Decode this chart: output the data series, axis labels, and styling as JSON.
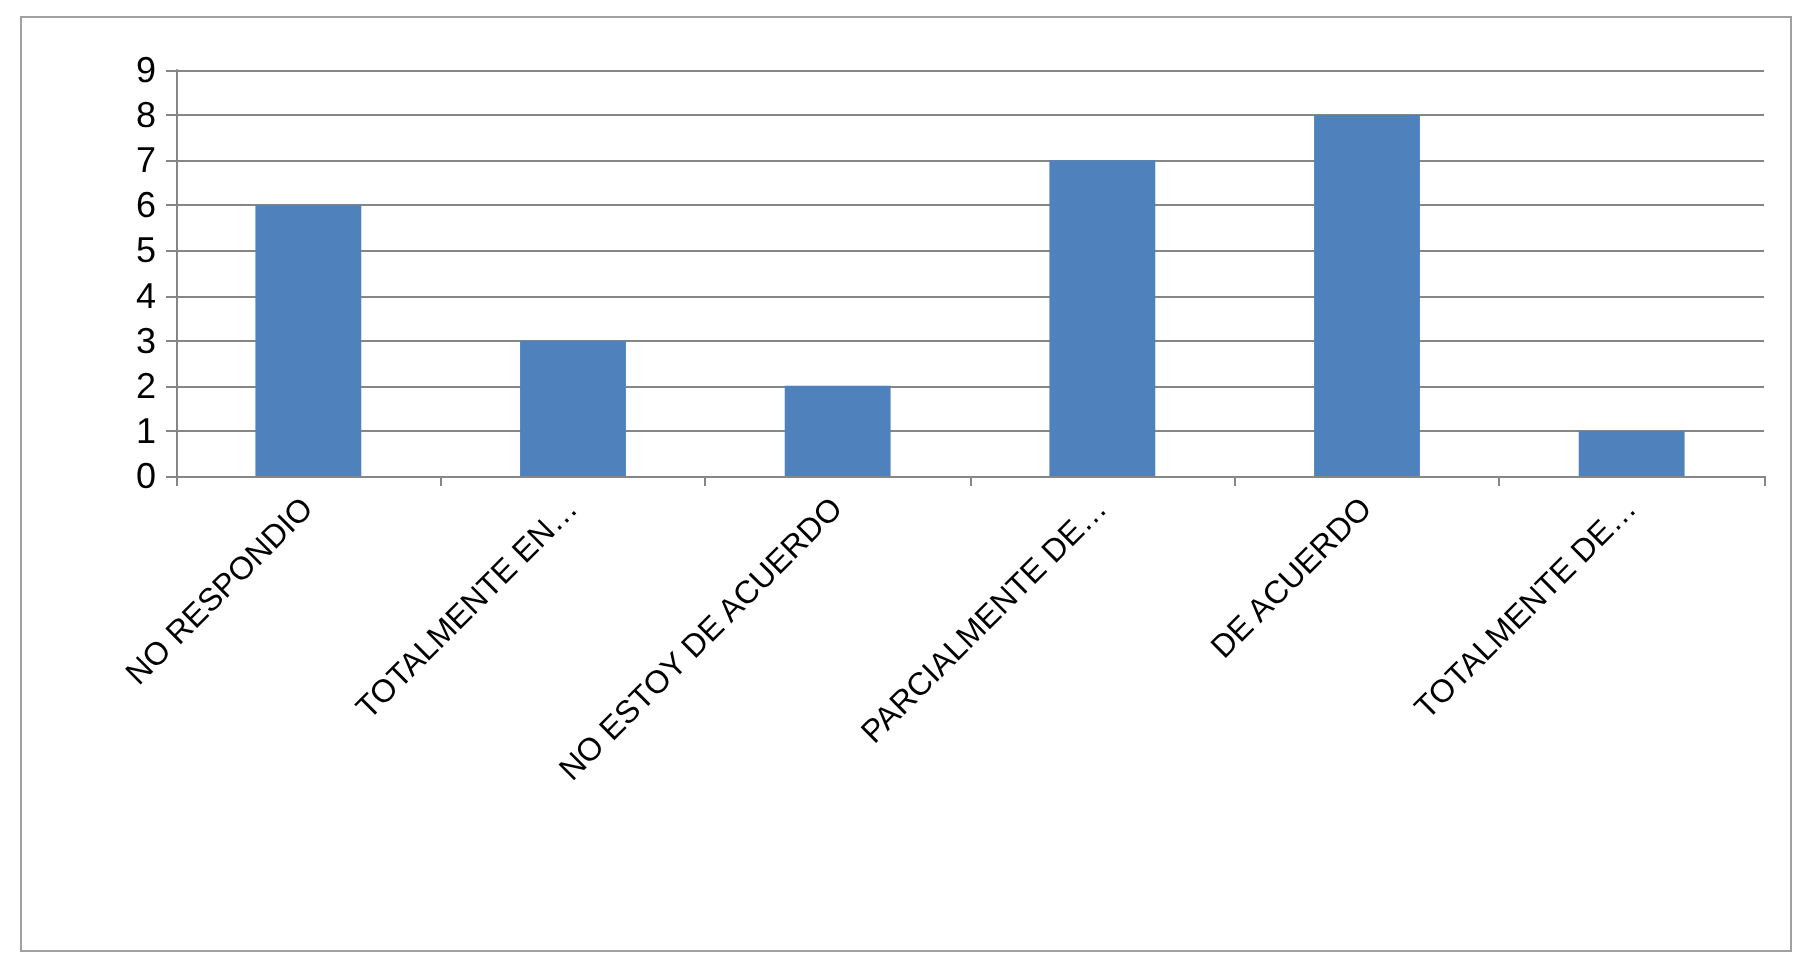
{
  "chart_data": {
    "type": "bar",
    "categories": [
      "NO RESPONDIO",
      "TOTALMENTE EN…",
      "NO ESTOY DE ACUERDO",
      "PARCIALMENTE DE…",
      "DE ACUERDO",
      "TOTALMENTE DE…"
    ],
    "values": [
      6,
      3,
      2,
      7,
      8,
      1
    ],
    "color": "#4f81bd",
    "ylim": [
      0,
      9
    ],
    "yticks": [
      0,
      1,
      2,
      3,
      4,
      5,
      6,
      7,
      8,
      9
    ],
    "grid": "y"
  }
}
